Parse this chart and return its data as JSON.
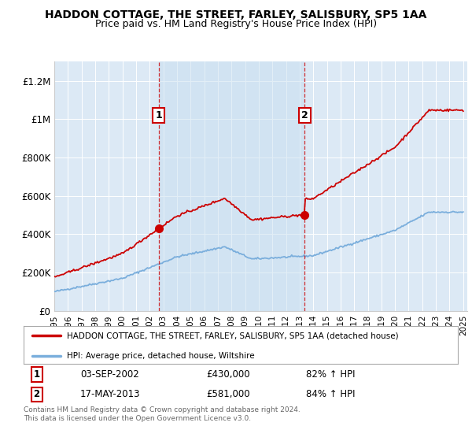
{
  "title": "HADDON COTTAGE, THE STREET, FARLEY, SALISBURY, SP5 1AA",
  "subtitle": "Price paid vs. HM Land Registry's House Price Index (HPI)",
  "ylim": [
    0,
    1300000
  ],
  "yticks": [
    0,
    200000,
    400000,
    600000,
    800000,
    1000000,
    1200000
  ],
  "ytick_labels": [
    "£0",
    "£200K",
    "£400K",
    "£600K",
    "£800K",
    "£1M",
    "£1.2M"
  ],
  "background_color": "#dce9f5",
  "legend_label_red": "HADDON COTTAGE, THE STREET, FARLEY, SALISBURY, SP5 1AA (detached house)",
  "legend_label_blue": "HPI: Average price, detached house, Wiltshire",
  "purchase1_date": "03-SEP-2002",
  "purchase1_price": "£430,000",
  "purchase1_hpi": "82% ↑ HPI",
  "purchase2_date": "17-MAY-2013",
  "purchase2_price": "£581,000",
  "purchase2_hpi": "84% ↑ HPI",
  "footer": "Contains HM Land Registry data © Crown copyright and database right 2024.\nThis data is licensed under the Open Government Licence v3.0.",
  "red_color": "#cc0000",
  "blue_color": "#7aaedc",
  "vline_color": "#cc0000",
  "purchase1_year": 2002.67,
  "purchase2_year": 2013.37,
  "purchase1_value": 430000,
  "purchase2_value": 581000
}
